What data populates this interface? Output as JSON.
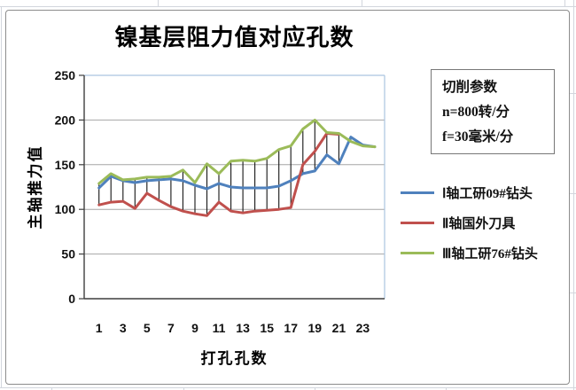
{
  "chart_data": {
    "type": "line",
    "title": "镍基层阻力值对应孔数",
    "xlabel": "打孔孔数",
    "ylabel": "主轴推力值",
    "x": [
      1,
      2,
      3,
      4,
      5,
      6,
      7,
      8,
      9,
      10,
      11,
      12,
      13,
      14,
      15,
      16,
      17,
      18,
      19,
      20,
      21,
      22,
      23,
      24
    ],
    "x_tick_labels": [
      1,
      3,
      5,
      7,
      9,
      11,
      13,
      15,
      17,
      19,
      21,
      23
    ],
    "y_ticks": [
      0,
      50,
      100,
      150,
      200,
      250
    ],
    "ylim": [
      0,
      250
    ],
    "grid": true,
    "high_low_lines": true,
    "legend_position": "right",
    "series": [
      {
        "name": "Ⅰ轴工研09#钻头",
        "color": "#4F81BD",
        "values": [
          124,
          137,
          132,
          130,
          132,
          133,
          134,
          132,
          127,
          123,
          129,
          125,
          124,
          124,
          124,
          126,
          132,
          140,
          143,
          161,
          151,
          181,
          172,
          170
        ]
      },
      {
        "name": "Ⅱ轴国外刀具",
        "color": "#C0504D",
        "values": [
          105,
          108,
          109,
          101,
          118,
          110,
          103,
          98,
          95,
          93,
          108,
          98,
          96,
          98,
          99,
          100,
          102,
          150,
          165,
          185,
          184
        ]
      },
      {
        "name": "Ⅲ轴工研76#钻头",
        "color": "#9BBB59",
        "values": [
          129,
          140,
          133,
          134,
          136,
          136,
          137,
          144,
          130,
          151,
          140,
          154,
          155,
          154,
          157,
          167,
          171,
          190,
          200,
          186,
          185,
          176,
          171,
          170
        ]
      }
    ],
    "annotation": [
      "切削参数",
      "n=800转/分",
      "f=30毫米/分"
    ]
  }
}
